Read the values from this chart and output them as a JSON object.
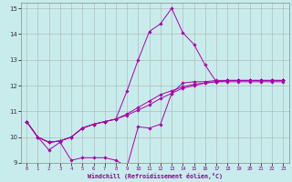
{
  "xlabel": "Windchill (Refroidissement éolien,°C)",
  "bg_color": "#c8ecec",
  "grid_color": "#b0b0b0",
  "line_color": "#aa00aa",
  "xlim": [
    -0.5,
    23.5
  ],
  "ylim": [
    9,
    15.2
  ],
  "xticks": [
    0,
    1,
    2,
    3,
    4,
    5,
    6,
    7,
    8,
    9,
    10,
    11,
    12,
    13,
    14,
    15,
    16,
    17,
    18,
    19,
    20,
    21,
    22,
    23
  ],
  "yticks": [
    9,
    10,
    11,
    12,
    13,
    14,
    15
  ],
  "series": [
    {
      "x": [
        0,
        1,
        2,
        3,
        4,
        5,
        6,
        7,
        8,
        9,
        10,
        11,
        12,
        13,
        14,
        15,
        16,
        17,
        18,
        19,
        20,
        21,
        22,
        23
      ],
      "y": [
        10.6,
        10.0,
        9.5,
        9.8,
        9.1,
        9.2,
        9.2,
        9.2,
        9.1,
        8.85,
        10.4,
        10.35,
        10.5,
        11.7,
        12.1,
        12.15,
        12.15,
        12.2,
        12.2,
        12.2,
        12.2,
        12.2,
        12.2,
        12.2
      ]
    },
    {
      "x": [
        0,
        1,
        2,
        3,
        4,
        5,
        6,
        7,
        8,
        9,
        10,
        11,
        12,
        13,
        14,
        15,
        16,
        17,
        18,
        19,
        20,
        21,
        22,
        23
      ],
      "y": [
        10.6,
        10.0,
        9.8,
        9.85,
        10.0,
        10.35,
        10.5,
        10.6,
        10.7,
        10.9,
        11.15,
        11.4,
        11.65,
        11.8,
        11.95,
        12.05,
        12.1,
        12.15,
        12.2,
        12.2,
        12.2,
        12.2,
        12.2,
        12.2
      ]
    },
    {
      "x": [
        0,
        1,
        2,
        3,
        4,
        5,
        6,
        7,
        8,
        9,
        10,
        11,
        12,
        13,
        14,
        15,
        16,
        17,
        18,
        19,
        20,
        21,
        22,
        23
      ],
      "y": [
        10.6,
        10.0,
        9.8,
        9.85,
        10.0,
        10.35,
        10.5,
        10.6,
        10.7,
        11.8,
        13.0,
        14.1,
        14.4,
        15.0,
        14.05,
        13.6,
        12.8,
        12.15,
        12.15,
        12.15,
        12.15,
        12.15,
        12.15,
        12.15
      ]
    },
    {
      "x": [
        0,
        1,
        2,
        3,
        4,
        5,
        6,
        7,
        8,
        9,
        10,
        11,
        12,
        13,
        14,
        15,
        16,
        17,
        18,
        19,
        20,
        21,
        22,
        23
      ],
      "y": [
        10.6,
        10.0,
        9.8,
        9.85,
        10.0,
        10.35,
        10.5,
        10.6,
        10.7,
        10.85,
        11.05,
        11.25,
        11.5,
        11.7,
        11.9,
        12.0,
        12.1,
        12.15,
        12.2,
        12.2,
        12.2,
        12.2,
        12.2,
        12.2
      ]
    }
  ]
}
